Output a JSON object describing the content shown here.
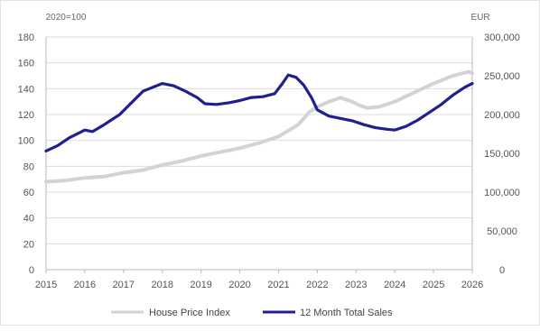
{
  "chart_data": {
    "type": "line",
    "left_unit": "2020=100",
    "right_unit": "EUR",
    "ylim_left": [
      0,
      180
    ],
    "yticks_left": [
      "0",
      "20",
      "40",
      "60",
      "80",
      "100",
      "120",
      "140",
      "160",
      "180"
    ],
    "ylim_right": [
      0,
      300000
    ],
    "yticks_right": [
      "0",
      "50,000",
      "100,000",
      "150,000",
      "200,000",
      "250,000",
      "300,000"
    ],
    "xlim": [
      2015,
      2026
    ],
    "xticks": [
      "2015",
      "2016",
      "2017",
      "2018",
      "2019",
      "2020",
      "2021",
      "2022",
      "2023",
      "2024",
      "2025",
      "2026"
    ],
    "grid": true,
    "legend_position": "bottom",
    "series": [
      {
        "name": "House Price Index",
        "axis": "left",
        "color": "#d3d3d3",
        "points": [
          [
            2015.0,
            68
          ],
          [
            2015.5,
            69
          ],
          [
            2016.0,
            71
          ],
          [
            2016.5,
            72
          ],
          [
            2017.0,
            75
          ],
          [
            2017.5,
            77
          ],
          [
            2018.0,
            81
          ],
          [
            2018.5,
            84
          ],
          [
            2019.0,
            88
          ],
          [
            2019.5,
            91
          ],
          [
            2020.0,
            94
          ],
          [
            2020.5,
            98
          ],
          [
            2021.0,
            103
          ],
          [
            2021.5,
            112
          ],
          [
            2021.8,
            122
          ],
          [
            2022.0,
            126
          ],
          [
            2022.3,
            130
          ],
          [
            2022.6,
            133
          ],
          [
            2022.9,
            130
          ],
          [
            2023.1,
            127
          ],
          [
            2023.3,
            125
          ],
          [
            2023.6,
            126
          ],
          [
            2024.0,
            130
          ],
          [
            2024.5,
            137
          ],
          [
            2025.0,
            144
          ],
          [
            2025.5,
            150
          ],
          [
            2025.9,
            153
          ],
          [
            2026.0,
            152
          ]
        ]
      },
      {
        "name": "12 Month Total Sales",
        "axis": "right",
        "color": "#1f1f8f",
        "points": [
          [
            2015.0,
            153000
          ],
          [
            2015.3,
            160000
          ],
          [
            2015.6,
            170000
          ],
          [
            2016.0,
            180000
          ],
          [
            2016.2,
            178000
          ],
          [
            2016.5,
            187000
          ],
          [
            2016.9,
            200000
          ],
          [
            2017.2,
            215000
          ],
          [
            2017.5,
            230000
          ],
          [
            2017.8,
            236000
          ],
          [
            2018.0,
            240000
          ],
          [
            2018.3,
            237000
          ],
          [
            2018.6,
            230000
          ],
          [
            2018.9,
            222000
          ],
          [
            2019.1,
            214000
          ],
          [
            2019.4,
            213000
          ],
          [
            2019.7,
            215000
          ],
          [
            2020.0,
            218000
          ],
          [
            2020.3,
            222000
          ],
          [
            2020.6,
            223000
          ],
          [
            2020.9,
            227000
          ],
          [
            2021.1,
            240000
          ],
          [
            2021.25,
            251000
          ],
          [
            2021.45,
            248000
          ],
          [
            2021.65,
            238000
          ],
          [
            2021.85,
            222000
          ],
          [
            2022.0,
            206000
          ],
          [
            2022.3,
            198000
          ],
          [
            2022.6,
            195000
          ],
          [
            2022.9,
            192000
          ],
          [
            2023.2,
            187000
          ],
          [
            2023.5,
            183000
          ],
          [
            2023.8,
            181000
          ],
          [
            2024.0,
            180000
          ],
          [
            2024.3,
            185000
          ],
          [
            2024.6,
            193000
          ],
          [
            2024.9,
            203000
          ],
          [
            2025.2,
            213000
          ],
          [
            2025.5,
            225000
          ],
          [
            2025.8,
            235000
          ],
          [
            2026.0,
            240000
          ]
        ]
      }
    ]
  }
}
